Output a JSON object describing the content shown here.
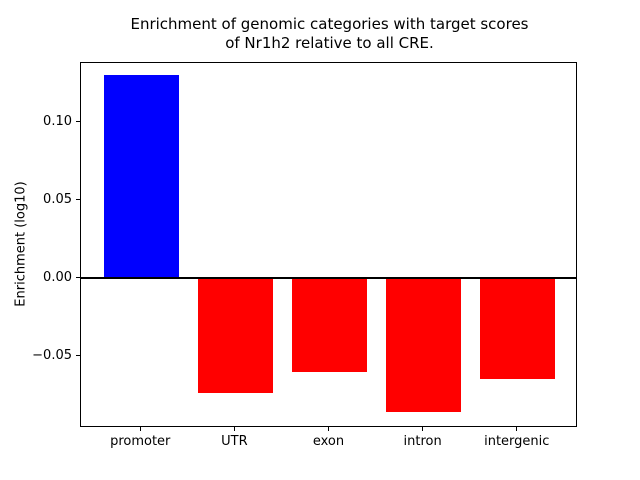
{
  "chart_data": {
    "type": "bar",
    "title": "Enrichment of genomic categories with target scores\nof Nr1h2 relative to all CRE.",
    "xlabel": "",
    "ylabel": "Enrichment (log10)",
    "categories": [
      "promoter",
      "UTR",
      "exon",
      "intron",
      "intergenic"
    ],
    "values": [
      0.131,
      -0.074,
      -0.06,
      -0.086,
      -0.065
    ],
    "bar_colors": [
      "#0000ff",
      "#ff0000",
      "#ff0000",
      "#ff0000",
      "#ff0000"
    ],
    "yticks": [
      0.1,
      0.05,
      0.0,
      -0.05
    ],
    "ytick_labels": [
      "0.10",
      "0.05",
      "0.00",
      "−0.05"
    ],
    "ylim": [
      -0.0962,
      0.1384
    ],
    "xlim": [
      -0.64,
      4.64
    ],
    "bar_width_fraction": 0.8,
    "grid": false,
    "legend": "none",
    "zero_line": true,
    "background_color": "#ffffff",
    "axis_color": "#000000"
  }
}
